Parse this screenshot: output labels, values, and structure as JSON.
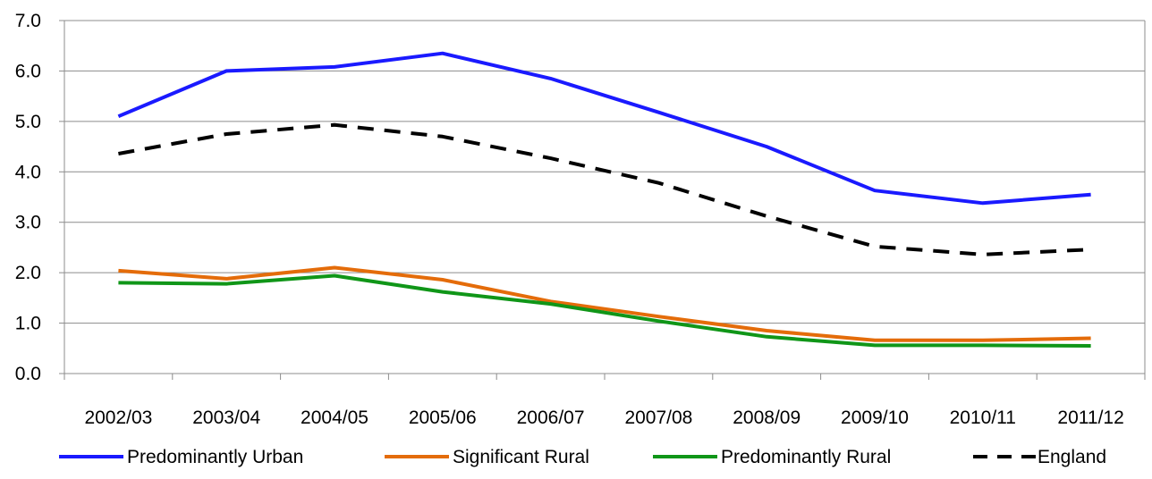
{
  "chart_data": {
    "type": "line",
    "title": "",
    "xlabel": "",
    "ylabel": "",
    "categories": [
      "2002/03",
      "2003/04",
      "2004/05",
      "2005/06",
      "2006/07",
      "2007/08",
      "2008/09",
      "2009/10",
      "2010/11",
      "2011/12"
    ],
    "y_ticks": [
      "0.0",
      "1.0",
      "2.0",
      "3.0",
      "4.0",
      "5.0",
      "6.0",
      "7.0"
    ],
    "ylim": [
      0,
      7
    ],
    "grid": true,
    "legend_position": "bottom",
    "series": [
      {
        "name": "Predominantly Urban",
        "color": "#1a1aff",
        "dash": "solid",
        "values": [
          5.1,
          6.0,
          6.08,
          6.35,
          5.85,
          5.18,
          4.5,
          3.63,
          3.38,
          3.55
        ]
      },
      {
        "name": "Significant Rural",
        "color": "#e46c0a",
        "dash": "solid",
        "values": [
          2.04,
          1.88,
          2.1,
          1.86,
          1.43,
          1.13,
          0.85,
          0.66,
          0.66,
          0.7
        ]
      },
      {
        "name": "Predominantly Rural",
        "color": "#109618",
        "dash": "solid",
        "values": [
          1.8,
          1.78,
          1.94,
          1.62,
          1.38,
          1.04,
          0.73,
          0.56,
          0.56,
          0.55
        ]
      },
      {
        "name": "England",
        "color": "#000000",
        "dash": "dashed",
        "values": [
          4.36,
          4.75,
          4.93,
          4.7,
          4.27,
          3.78,
          3.12,
          2.52,
          2.36,
          2.46
        ]
      }
    ]
  }
}
